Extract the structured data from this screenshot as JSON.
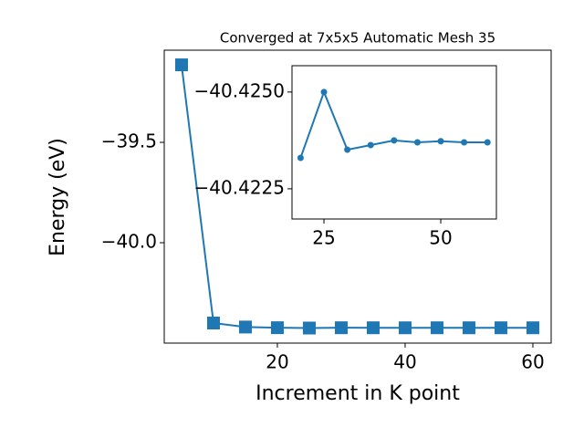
{
  "chart_data": [
    {
      "type": "line",
      "title": "Converged at 7x5x5 Automatic Mesh 35",
      "xlabel": "Increment in K point",
      "ylabel": "Energy (eV)",
      "x": [
        5,
        10,
        15,
        20,
        25,
        30,
        35,
        40,
        45,
        50,
        55,
        60
      ],
      "values": [
        -39.114,
        -40.4,
        -40.42,
        -40.4233,
        -40.425,
        -40.42351,
        -40.42363,
        -40.42375,
        -40.4237,
        -40.42373,
        -40.4237,
        -40.4237
      ],
      "color": "#1f77b4",
      "marker": "square",
      "xlim": [
        2.29,
        62.86
      ],
      "ylim": [
        -40.5,
        -39.041
      ],
      "xticks": [
        20,
        40,
        60
      ],
      "yticks": [
        {
          "value": -40.0,
          "label": "−40.0"
        },
        {
          "value": -39.5,
          "label": "−39.5"
        }
      ]
    },
    {
      "type": "line",
      "x": [
        20,
        25,
        30,
        35,
        40,
        45,
        50,
        55,
        60
      ],
      "values": [
        -40.4233,
        -40.425,
        -40.42351,
        -40.42363,
        -40.42375,
        -40.4237,
        -40.42373,
        -40.4237,
        -40.4237
      ],
      "color": "#1f77b4",
      "marker": "circle",
      "xlim": [
        18.16,
        61.91
      ],
      "ylim": [
        -40.42172,
        -40.42568
      ],
      "xticks": [
        25,
        50
      ],
      "yticks": [
        {
          "value": -40.4225,
          "label": "−40.4225"
        },
        {
          "value": -40.425,
          "label": "−40.4250"
        }
      ]
    }
  ]
}
